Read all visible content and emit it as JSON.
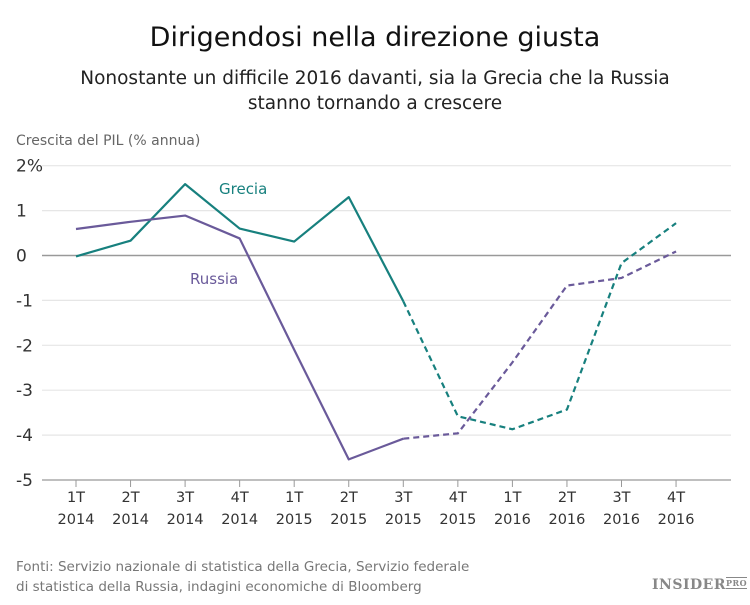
{
  "header": {
    "title": "Dirigendosi nella direzione giusta",
    "subtitle_line1": "Nonostante un difficile 2016 davanti, sia la Grecia che la Russia",
    "subtitle_line2": "stanno tornando a crescere"
  },
  "footer": {
    "source_line1": "Fonti: Servizio nazionale di statistica della Grecia, Servizio federale",
    "source_line2": "di statistica della Russia, indagini economiche di Bloomberg",
    "logo": "INSIDER PRO"
  },
  "chart_data": {
    "type": "line",
    "title": "Dirigendosi nella direzione giusta",
    "ylabel": "Crescita del PIL  (% annua)",
    "ylim": [
      -5,
      2
    ],
    "yticks": [
      "2%",
      "1",
      "0",
      "-1",
      "-2",
      "-3",
      "-4",
      "-5"
    ],
    "grid": true,
    "categories": [
      [
        "1T",
        "2014"
      ],
      [
        "2T",
        "2014"
      ],
      [
        "3T",
        "2014"
      ],
      [
        "4T",
        "2014"
      ],
      [
        "1T",
        "2015"
      ],
      [
        "2T",
        "2015"
      ],
      [
        "3T",
        "2015"
      ],
      [
        "4T",
        "2015"
      ],
      [
        "1T",
        "2016"
      ],
      [
        "2T",
        "2016"
      ],
      [
        "3T",
        "2016"
      ],
      [
        "4T",
        "2016"
      ]
    ],
    "dashed_from_index": 6,
    "series": [
      {
        "name": "Grecia",
        "color": "#17807e",
        "values": [
          -0.02,
          0.33,
          1.59,
          0.6,
          0.31,
          1.3,
          -1.02,
          -3.58,
          -3.87,
          -3.43,
          -0.17,
          0.72
        ]
      },
      {
        "name": "Russia",
        "color": "#6a5a9a",
        "values": [
          0.59,
          0.75,
          0.89,
          0.38,
          -2.1,
          -4.54,
          -4.08,
          -3.96,
          -2.38,
          -0.67,
          -0.5,
          0.09
        ]
      }
    ]
  }
}
